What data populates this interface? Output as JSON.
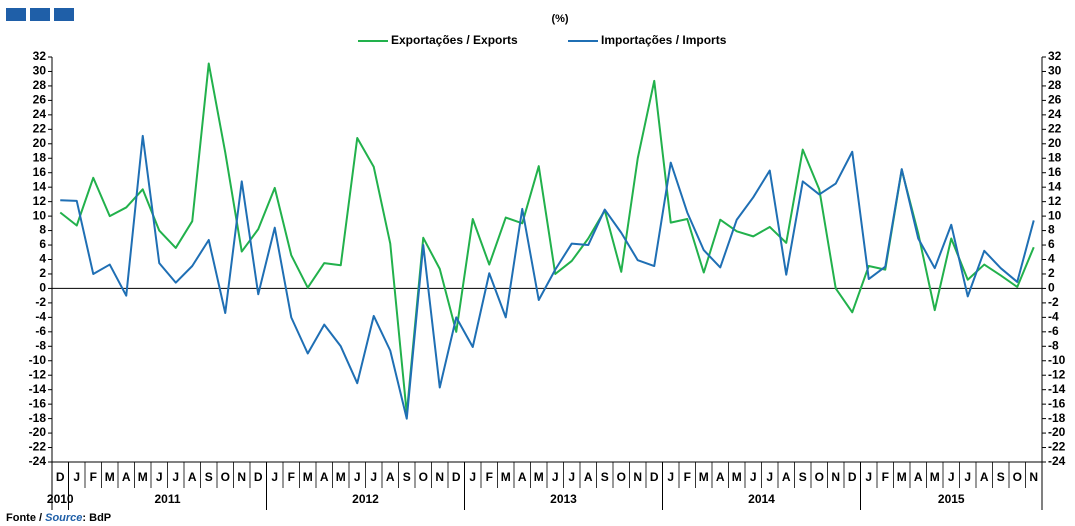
{
  "chart_data": {
    "type": "line",
    "subtitle": "(%)",
    "source_prefix": "Fonte / ",
    "source_italic": "Source",
    "source_suffix": ": BdP",
    "categories": [
      "D",
      "J",
      "F",
      "M",
      "A",
      "M",
      "J",
      "J",
      "A",
      "S",
      "O",
      "N",
      "D",
      "J",
      "F",
      "M",
      "A",
      "M",
      "J",
      "J",
      "A",
      "S",
      "O",
      "N",
      "D",
      "J",
      "F",
      "M",
      "A",
      "M",
      "J",
      "J",
      "A",
      "S",
      "O",
      "N",
      "D",
      "J",
      "F",
      "M",
      "A",
      "M",
      "J",
      "J",
      "A",
      "S",
      "O",
      "N",
      "D",
      "J",
      "F",
      "M",
      "A",
      "M",
      "J",
      "J",
      "A",
      "S",
      "O",
      "N"
    ],
    "year_groups": [
      {
        "label": "2010",
        "months": 1
      },
      {
        "label": "2011",
        "months": 12
      },
      {
        "label": "2012",
        "months": 12
      },
      {
        "label": "2013",
        "months": 12
      },
      {
        "label": "2014",
        "months": 12
      },
      {
        "label": "2015",
        "months": 11
      }
    ],
    "series": [
      {
        "name": "Exportações / Exports",
        "color": "#22b14c",
        "values": [
          10.5,
          8.7,
          15.3,
          10.0,
          11.2,
          13.7,
          8.0,
          5.6,
          9.3,
          31.1,
          18.8,
          5.1,
          8.2,
          13.9,
          4.6,
          0.1,
          3.5,
          3.2,
          20.8,
          16.8,
          6.2,
          -17.3,
          7.0,
          2.7,
          -6.0,
          9.6,
          3.3,
          9.8,
          9.0,
          16.9,
          2.0,
          3.8,
          6.9,
          10.8,
          2.3,
          18.0,
          28.7,
          9.1,
          9.6,
          2.2,
          9.5,
          7.9,
          7.2,
          8.5,
          6.3,
          19.2,
          13.7,
          0.0,
          -3.3,
          3.1,
          2.6,
          16.4,
          7.6,
          -3.0,
          6.9,
          1.2,
          3.3,
          1.8,
          0.2,
          5.7
        ]
      },
      {
        "name": "Importações / Imports",
        "color": "#1f6fb4",
        "values": [
          12.2,
          12.1,
          2.0,
          3.3,
          -1.0,
          21.1,
          3.5,
          0.8,
          3.1,
          6.7,
          -3.4,
          14.8,
          -0.8,
          8.4,
          -4.0,
          -9.0,
          -5.0,
          -8.0,
          -13.1,
          -3.8,
          -8.6,
          -18.0,
          6.0,
          -13.7,
          -4.0,
          -8.1,
          2.1,
          -4.0,
          11.0,
          -1.6,
          2.6,
          6.2,
          6.0,
          10.9,
          7.7,
          3.9,
          3.1,
          17.4,
          10.5,
          5.3,
          2.9,
          9.5,
          12.6,
          16.3,
          1.9,
          14.8,
          13.0,
          14.5,
          18.9,
          1.3,
          3.0,
          16.5,
          6.9,
          2.8,
          8.8,
          -1.1,
          5.2,
          2.8,
          0.9,
          9.4
        ]
      }
    ],
    "ylim": [
      -24,
      32
    ],
    "yticks": [
      -24,
      -22,
      -20,
      -18,
      -16,
      -14,
      -12,
      -10,
      -8,
      -6,
      -4,
      -2,
      0,
      2,
      4,
      6,
      8,
      10,
      12,
      14,
      16,
      18,
      20,
      22,
      24,
      26,
      28,
      30,
      32
    ],
    "y2lim": [
      -24,
      32
    ],
    "y2ticks": [
      -24,
      -22,
      -20,
      -18,
      -16,
      -14,
      -12,
      -10,
      -8,
      -6,
      -4,
      -2,
      0,
      2,
      4,
      6,
      8,
      10,
      12,
      14,
      16,
      18,
      20,
      22,
      24,
      26,
      28,
      30,
      32
    ]
  }
}
